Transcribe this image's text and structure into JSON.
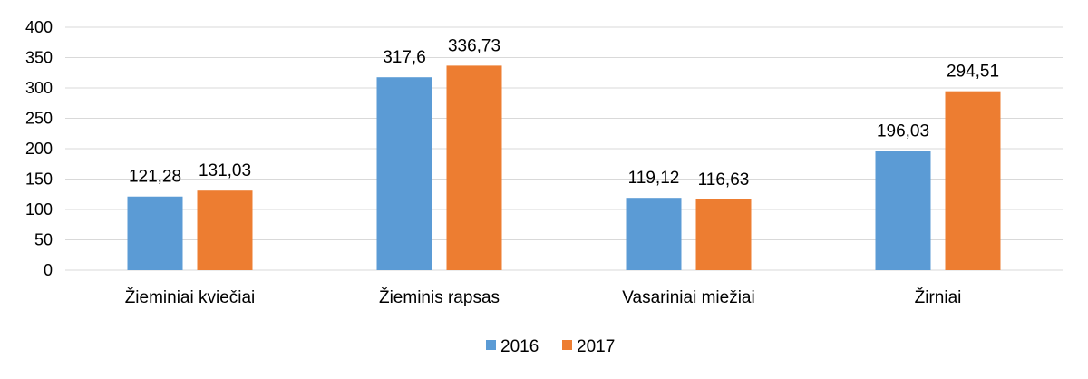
{
  "chart_data": {
    "type": "bar",
    "title": "",
    "xlabel": "",
    "ylabel": "",
    "categories": [
      "Žieminiai kviečiai",
      "Žieminis rapsas",
      "Vasariniai miežiai",
      "Žirniai"
    ],
    "series": [
      {
        "name": "2016",
        "color": "#5b9bd5",
        "values": [
          121.28,
          317.6,
          119.12,
          196.03
        ],
        "labels": [
          "121,28",
          "317,6",
          "119,12",
          "196,03"
        ]
      },
      {
        "name": "2017",
        "color": "#ed7d31",
        "values": [
          131.03,
          336.73,
          116.63,
          294.51
        ],
        "labels": [
          "131,03",
          "336,73",
          "116,63",
          "294,51"
        ]
      }
    ],
    "ylim": [
      0,
      400
    ],
    "yticks": [
      0,
      50,
      100,
      150,
      200,
      250,
      300,
      350,
      400
    ],
    "ytick_labels": [
      "0",
      "50",
      "100",
      "150",
      "200",
      "250",
      "300",
      "350",
      "400"
    ],
    "grid": true,
    "gridline_color": "#d9d9d9",
    "legend_position": "bottom"
  }
}
